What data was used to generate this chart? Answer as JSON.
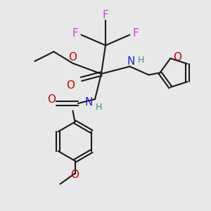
{
  "bg_color": "#e8e8e8",
  "bond_color": "#1a1a1a",
  "bond_width": 1.5,
  "F_color": "#cc44cc",
  "O_color": "#cc0000",
  "N_color": "#2222cc",
  "H_color": "#448888",
  "font_size": 11,
  "font_size_small": 9,
  "fig_size": [
    3.0,
    3.0
  ],
  "dpi": 100,
  "xlim": [
    0,
    10
  ],
  "ylim": [
    0,
    10
  ]
}
